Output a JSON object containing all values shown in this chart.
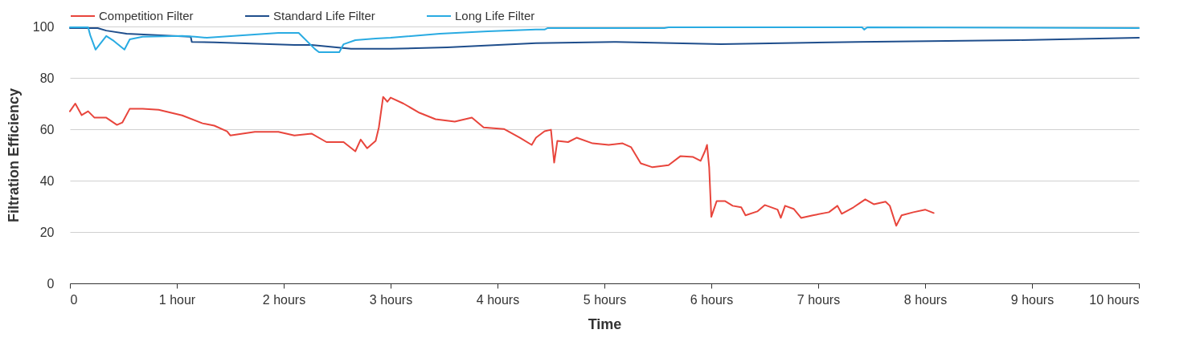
{
  "chart_data": {
    "type": "line",
    "xlabel": "Time",
    "ylabel": "Filtration Efficiency",
    "xlim": [
      0,
      10
    ],
    "ylim": [
      0,
      100
    ],
    "xticks": [
      {
        "value": 0,
        "label": "0"
      },
      {
        "value": 1,
        "label": "1 hour"
      },
      {
        "value": 2,
        "label": "2 hours"
      },
      {
        "value": 3,
        "label": "3 hours"
      },
      {
        "value": 4,
        "label": "4 hours"
      },
      {
        "value": 5,
        "label": "5 hours"
      },
      {
        "value": 6,
        "label": "6 hours"
      },
      {
        "value": 7,
        "label": "7 hours"
      },
      {
        "value": 8,
        "label": "8 hours"
      },
      {
        "value": 9,
        "label": "9 hours"
      },
      {
        "value": 10,
        "label": "10 hours"
      }
    ],
    "yticks": [
      0,
      20,
      40,
      60,
      80,
      100
    ],
    "grid": "y",
    "legend": "top",
    "line_style": "solid",
    "series": [
      {
        "name": "Competition Filter",
        "color": "#e8453c",
        "x": [
          0,
          0.05,
          0.11,
          0.17,
          0.23,
          0.34,
          0.44,
          0.49,
          0.56,
          0.68,
          0.83,
          1.05,
          1.24,
          1.35,
          1.47,
          1.5,
          1.73,
          1.95,
          2.1,
          2.26,
          2.4,
          2.56,
          2.67,
          2.72,
          2.78,
          2.86,
          2.89,
          2.93,
          2.97,
          3.0,
          3.12,
          3.27,
          3.42,
          3.6,
          3.76,
          3.87,
          4.06,
          4.21,
          4.32,
          4.36,
          4.44,
          4.5,
          4.53,
          4.56,
          4.66,
          4.74,
          4.89,
          5.04,
          5.17,
          5.25,
          5.34,
          5.45,
          5.6,
          5.71,
          5.83,
          5.9,
          5.94,
          5.96,
          5.98,
          6.0,
          6.05,
          6.13,
          6.2,
          6.28,
          6.32,
          6.43,
          6.5,
          6.62,
          6.65,
          6.69,
          6.77,
          6.84,
          6.95,
          7.1,
          7.18,
          7.22,
          7.33,
          7.44,
          7.52,
          7.63,
          7.67,
          7.73,
          7.78,
          7.89,
          8.0,
          8.08
        ],
        "values": [
          67,
          70,
          65.5,
          67,
          64.5,
          64.5,
          61.7,
          62.6,
          68,
          68,
          67.6,
          65.4,
          62.3,
          61.4,
          59.2,
          57.6,
          59,
          59,
          57.6,
          58.3,
          55,
          55,
          51.4,
          56,
          52.6,
          55.5,
          60.7,
          72.6,
          70.7,
          72.3,
          70,
          66.4,
          63.9,
          63,
          64.5,
          60.7,
          60.1,
          56.7,
          53.9,
          56.7,
          59.2,
          59.8,
          47,
          55.5,
          55,
          56.7,
          54.5,
          53.9,
          54.5,
          53,
          46.7,
          45.2,
          46,
          49.5,
          49.2,
          47.7,
          51.4,
          53.9,
          45.2,
          25.9,
          32,
          32,
          30.2,
          29.6,
          26.5,
          28,
          30.5,
          28.7,
          25.5,
          30.2,
          29,
          25.5,
          26.5,
          27.7,
          30.2,
          27.1,
          29.6,
          32.7,
          30.8,
          31.8,
          30.2,
          22.4,
          26.5,
          27.7,
          28.7,
          27.4
        ]
      },
      {
        "name": "Standard Life Filter",
        "color": "#1f4e8c",
        "x": [
          0,
          0.26,
          0.34,
          0.53,
          1.13,
          1.14,
          1.35,
          2.1,
          2.26,
          2.63,
          3.0,
          3.53,
          4.36,
          5.11,
          6.09,
          7.37,
          8.87,
          10
        ],
        "values": [
          99.4,
          99.4,
          98.4,
          97.2,
          96,
          94,
          93.8,
          92.8,
          92.8,
          91.3,
          91.3,
          91.9,
          93.5,
          94,
          93.1,
          94,
          94.7,
          95.6
        ]
      },
      {
        "name": "Long Life Filter",
        "color": "#29abe2",
        "x": [
          0,
          0.17,
          0.19,
          0.24,
          0.34,
          0.41,
          0.51,
          0.56,
          0.68,
          1.05,
          1.17,
          1.28,
          1.95,
          2.14,
          2.29,
          2.33,
          2.52,
          2.56,
          2.67,
          2.86,
          3.0,
          3.46,
          3.91,
          4.36,
          4.44,
          4.47,
          5.56,
          5.6,
          7.41,
          7.43,
          7.46,
          10
        ],
        "values": [
          99.7,
          99.7,
          96.6,
          91,
          96.3,
          94.4,
          91,
          95,
          96,
          96.3,
          96,
          95.6,
          97.5,
          97.5,
          91.3,
          90,
          90,
          93.1,
          94.7,
          95.3,
          95.6,
          97.2,
          98.1,
          98.8,
          98.8,
          99.4,
          99.4,
          99.7,
          99.7,
          98.8,
          99.7,
          99.4
        ]
      }
    ]
  }
}
